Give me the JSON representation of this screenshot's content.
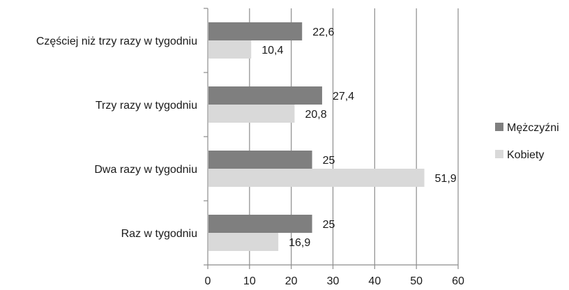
{
  "chart_data": {
    "type": "bar",
    "orientation": "horizontal",
    "categories": [
      "Częściej niż trzy razy w tygodniu",
      "Trzy razy w tygodniu",
      "Dwa razy w tygodniu",
      "Raz w tygodniu"
    ],
    "series": [
      {
        "name": "Mężczyźni",
        "values": [
          22.6,
          27.4,
          25,
          25
        ],
        "labels": [
          "22,6",
          "27,4",
          "25",
          "25"
        ],
        "color": "#7f7f7f"
      },
      {
        "name": "Kobiety",
        "values": [
          10.4,
          20.8,
          51.9,
          16.9
        ],
        "labels": [
          "10,4",
          "20,8",
          "51,9",
          "16,9"
        ],
        "color": "#d9d9d9"
      }
    ],
    "xlim": [
      0,
      60
    ],
    "ticks": [
      "0",
      "10",
      "20",
      "30",
      "40",
      "50",
      "60"
    ],
    "grid": true,
    "legend": "right"
  }
}
